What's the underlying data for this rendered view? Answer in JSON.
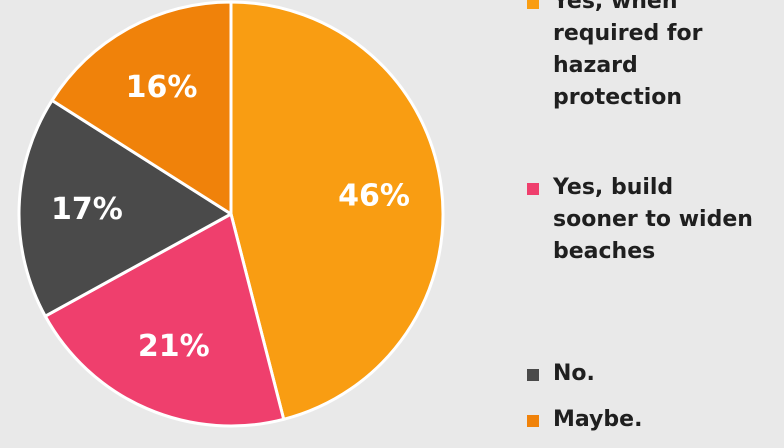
{
  "chart_data": {
    "type": "pie",
    "title": "",
    "slices": [
      {
        "label": "Yes, when required for hazard protection",
        "value": 46,
        "value_label": "46%",
        "color": "#f99d12"
      },
      {
        "label": "Yes, build sooner to widen beaches",
        "value": 21,
        "value_label": "21%",
        "color": "#ef3f6d"
      },
      {
        "label": "No.",
        "value": 17,
        "value_label": "17%",
        "color": "#4a4a4a"
      },
      {
        "label": "Maybe.",
        "value": 16,
        "value_label": "16%",
        "color": "#f0820a"
      }
    ],
    "legend_position": "right",
    "slice_border_color": "#ffffff"
  }
}
